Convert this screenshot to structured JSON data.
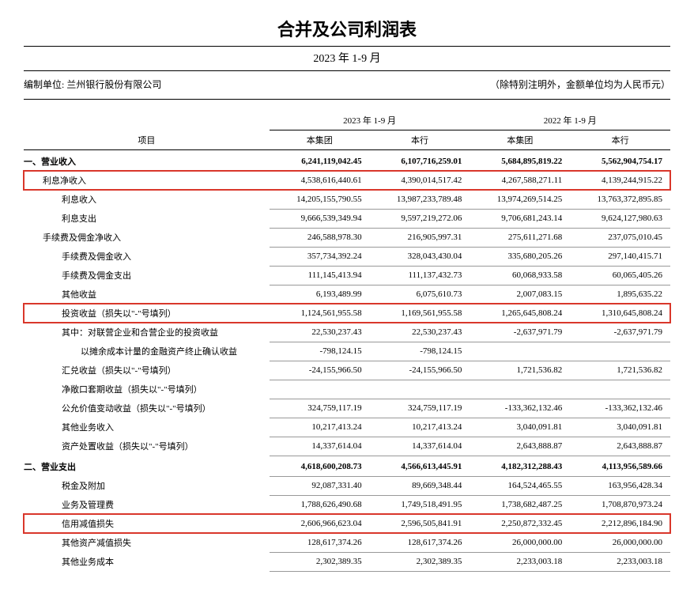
{
  "title": "合并及公司利润表",
  "period": "2023 年 1-9 月",
  "prepared_by_label": "编制单位:",
  "prepared_by": "兰州银行股份有限公司",
  "unit_note": "（除特别注明外，金额单位均为人民币元）",
  "col_header_item": "项目",
  "period_2023": "2023 年 1-9 月",
  "period_2022": "2022 年 1-9 月",
  "col_group": "本集团",
  "col_bank": "本行",
  "rows": [
    {
      "label": "一、营业收入",
      "indent": 0,
      "section": true,
      "g23": "6,241,119,042.45",
      "b23": "6,107,716,259.01",
      "g22": "5,684,895,819.22",
      "b22": "5,562,904,754.17",
      "hl": false
    },
    {
      "label": "利息净收入",
      "indent": 1,
      "g23": "4,538,616,440.61",
      "b23": "4,390,014,517.42",
      "g22": "4,267,588,271.11",
      "b22": "4,139,244,915.22",
      "hl": true
    },
    {
      "label": "利息收入",
      "indent": 2,
      "g23": "14,205,155,790.55",
      "b23": "13,987,233,789.48",
      "g22": "13,974,269,514.25",
      "b22": "13,763,372,895.85",
      "hl": false
    },
    {
      "label": "利息支出",
      "indent": 2,
      "g23": "9,666,539,349.94",
      "b23": "9,597,219,272.06",
      "g22": "9,706,681,243.14",
      "b22": "9,624,127,980.63",
      "hl": false
    },
    {
      "label": "手续费及佣金净收入",
      "indent": 1,
      "g23": "246,588,978.30",
      "b23": "216,905,997.31",
      "g22": "275,611,271.68",
      "b22": "237,075,010.45",
      "hl": false
    },
    {
      "label": "手续费及佣金收入",
      "indent": 2,
      "g23": "357,734,392.24",
      "b23": "328,043,430.04",
      "g22": "335,680,205.26",
      "b22": "297,140,415.71",
      "hl": false
    },
    {
      "label": "手续费及佣金支出",
      "indent": 2,
      "g23": "111,145,413.94",
      "b23": "111,137,432.73",
      "g22": "60,068,933.58",
      "b22": "60,065,405.26",
      "hl": false
    },
    {
      "label": "其他收益",
      "indent": 2,
      "g23": "6,193,489.99",
      "b23": "6,075,610.73",
      "g22": "2,007,083.15",
      "b22": "1,895,635.22",
      "hl": false
    },
    {
      "label": "投资收益（损失以\"-\"号填列）",
      "indent": 2,
      "g23": "1,124,561,955.58",
      "b23": "1,169,561,955.58",
      "g22": "1,265,645,808.24",
      "b22": "1,310,645,808.24",
      "hl": true
    },
    {
      "label": "其中：对联营企业和合营企业的投资收益",
      "indent": 2,
      "g23": "22,530,237.43",
      "b23": "22,530,237.43",
      "g22": "-2,637,971.79",
      "b22": "-2,637,971.79",
      "hl": false
    },
    {
      "label": "以摊余成本计量的金融资产终止确认收益",
      "indent": 3,
      "g23": "-798,124.15",
      "b23": "-798,124.15",
      "g22": "",
      "b22": "",
      "hl": false
    },
    {
      "label": "汇兑收益（损失以\"-\"号填列）",
      "indent": 2,
      "g23": "-24,155,966.50",
      "b23": "-24,155,966.50",
      "g22": "1,721,536.82",
      "b22": "1,721,536.82",
      "hl": false
    },
    {
      "label": "净敞口套期收益（损失以\"-\"号填列）",
      "indent": 2,
      "g23": "",
      "b23": "",
      "g22": "",
      "b22": "",
      "hl": false
    },
    {
      "label": "公允价值变动收益（损失以\"-\"号填列）",
      "indent": 2,
      "g23": "324,759,117.19",
      "b23": "324,759,117.19",
      "g22": "-133,362,132.46",
      "b22": "-133,362,132.46",
      "hl": false
    },
    {
      "label": "其他业务收入",
      "indent": 2,
      "g23": "10,217,413.24",
      "b23": "10,217,413.24",
      "g22": "3,040,091.81",
      "b22": "3,040,091.81",
      "hl": false
    },
    {
      "label": "资产处置收益（损失以\"-\"号填列）",
      "indent": 2,
      "g23": "14,337,614.04",
      "b23": "14,337,614.04",
      "g22": "2,643,888.87",
      "b22": "2,643,888.87",
      "hl": false
    },
    {
      "label": "二、营业支出",
      "indent": 0,
      "section": true,
      "g23": "4,618,600,208.73",
      "b23": "4,566,613,445.91",
      "g22": "4,182,312,288.43",
      "b22": "4,113,956,589.66",
      "hl": false
    },
    {
      "label": "税金及附加",
      "indent": 2,
      "g23": "92,087,331.40",
      "b23": "89,669,348.44",
      "g22": "164,524,465.55",
      "b22": "163,956,428.34",
      "hl": false
    },
    {
      "label": "业务及管理费",
      "indent": 2,
      "g23": "1,788,626,490.68",
      "b23": "1,749,518,491.95",
      "g22": "1,738,682,487.25",
      "b22": "1,708,870,973.24",
      "hl": false
    },
    {
      "label": "信用减值损失",
      "indent": 2,
      "g23": "2,606,966,623.04",
      "b23": "2,596,505,841.91",
      "g22": "2,250,872,332.45",
      "b22": "2,212,896,184.90",
      "hl": true
    },
    {
      "label": "其他资产减值损失",
      "indent": 2,
      "g23": "128,617,374.26",
      "b23": "128,617,374.26",
      "g22": "26,000,000.00",
      "b22": "26,000,000.00",
      "hl": false
    },
    {
      "label": "其他业务成本",
      "indent": 2,
      "g23": "2,302,389.35",
      "b23": "2,302,389.35",
      "g22": "2,233,003.18",
      "b22": "2,233,003.18",
      "hl": false
    }
  ],
  "style": {
    "highlight_color": "#d9372b",
    "text_color": "#000000",
    "bg_color": "#ffffff",
    "line_color_heavy": "#000000",
    "line_color_light": "#999999",
    "title_fontsize": 22,
    "body_fontsize": 11
  }
}
